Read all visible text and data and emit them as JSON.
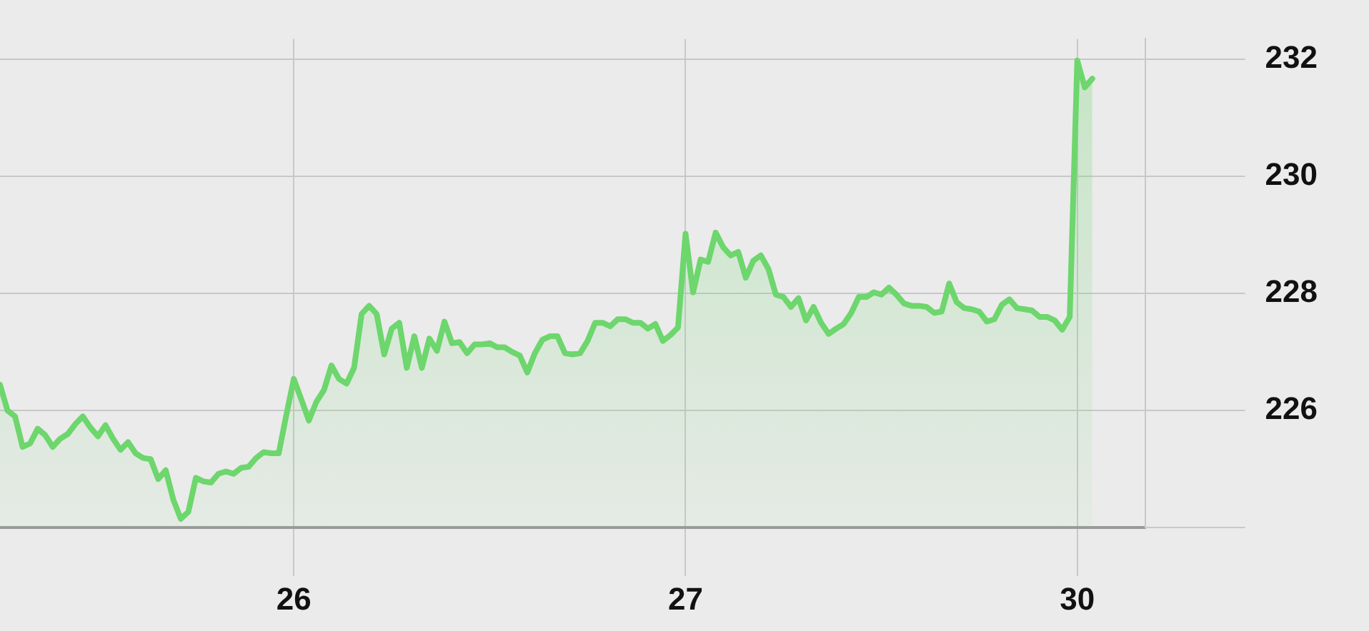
{
  "chart_data": {
    "type": "area",
    "color": "#6dd66d",
    "ylim": [
      224,
      232.35
    ],
    "categories": [
      null,
      null,
      null,
      null,
      null,
      null,
      null,
      null,
      null,
      null,
      null,
      null,
      null,
      null,
      null,
      null,
      null,
      null,
      null,
      null,
      null,
      null,
      null,
      null,
      null,
      null,
      null,
      null,
      null,
      null,
      null,
      null,
      null,
      null,
      null,
      null,
      null,
      null,
      null,
      "26",
      null,
      null,
      null,
      null,
      null,
      null,
      null,
      null,
      null,
      null,
      null,
      null,
      null,
      null,
      null,
      null,
      null,
      null,
      null,
      null,
      null,
      null,
      null,
      null,
      null,
      null,
      null,
      null,
      null,
      null,
      null,
      null,
      null,
      null,
      null,
      null,
      null,
      null,
      null,
      null,
      null,
      null,
      null,
      null,
      null,
      null,
      null,
      null,
      null,
      null,
      null,
      "27",
      null,
      null,
      null,
      null,
      null,
      null,
      null,
      null,
      null,
      null,
      null,
      null,
      null,
      null,
      null,
      null,
      null,
      null,
      null,
      null,
      null,
      null,
      null,
      null,
      null,
      null,
      null,
      null,
      null,
      null,
      null,
      null,
      null,
      null,
      null,
      null,
      null,
      null,
      null,
      null,
      null,
      null,
      null,
      null,
      null,
      null,
      null,
      null,
      null,
      null,
      null,
      "30",
      null,
      null
    ],
    "yticks": [
      {
        "value": 224,
        "label": null
      },
      226,
      228,
      230,
      232
    ],
    "grid": true,
    "legend": false,
    "marker": "none",
    "line_style": "solid",
    "values": [
      226.44,
      226.0,
      225.9,
      225.38,
      225.44,
      225.69,
      225.58,
      225.38,
      225.52,
      225.6,
      225.77,
      225.9,
      225.71,
      225.56,
      225.75,
      225.52,
      225.33,
      225.46,
      225.27,
      225.19,
      225.17,
      224.83,
      224.98,
      224.48,
      224.15,
      224.27,
      224.85,
      224.79,
      224.77,
      224.92,
      224.96,
      224.92,
      225.02,
      225.04,
      225.19,
      225.29,
      225.27,
      225.27,
      225.92,
      226.54,
      226.19,
      225.83,
      226.15,
      226.35,
      226.77,
      226.54,
      226.46,
      226.73,
      227.65,
      227.79,
      227.65,
      226.96,
      227.4,
      227.5,
      226.73,
      227.27,
      226.73,
      227.23,
      227.02,
      227.52,
      227.15,
      227.17,
      226.98,
      227.13,
      227.13,
      227.15,
      227.08,
      227.08,
      227.0,
      226.94,
      226.65,
      226.98,
      227.21,
      227.27,
      227.27,
      226.98,
      226.96,
      226.98,
      227.19,
      227.5,
      227.5,
      227.44,
      227.56,
      227.56,
      227.5,
      227.5,
      227.4,
      227.48,
      227.19,
      227.29,
      227.42,
      229.02,
      228.02,
      228.58,
      228.54,
      229.04,
      228.79,
      228.65,
      228.71,
      228.27,
      228.56,
      228.65,
      228.42,
      227.98,
      227.94,
      227.77,
      227.92,
      227.54,
      227.77,
      227.5,
      227.31,
      227.4,
      227.48,
      227.67,
      227.94,
      227.94,
      228.02,
      227.98,
      228.1,
      227.98,
      227.83,
      227.79,
      227.79,
      227.77,
      227.67,
      227.69,
      228.17,
      227.85,
      227.75,
      227.73,
      227.69,
      227.52,
      227.56,
      227.81,
      227.9,
      227.75,
      227.73,
      227.71,
      227.6,
      227.6,
      227.54,
      227.38,
      227.6,
      231.98,
      231.52,
      231.67
    ]
  }
}
